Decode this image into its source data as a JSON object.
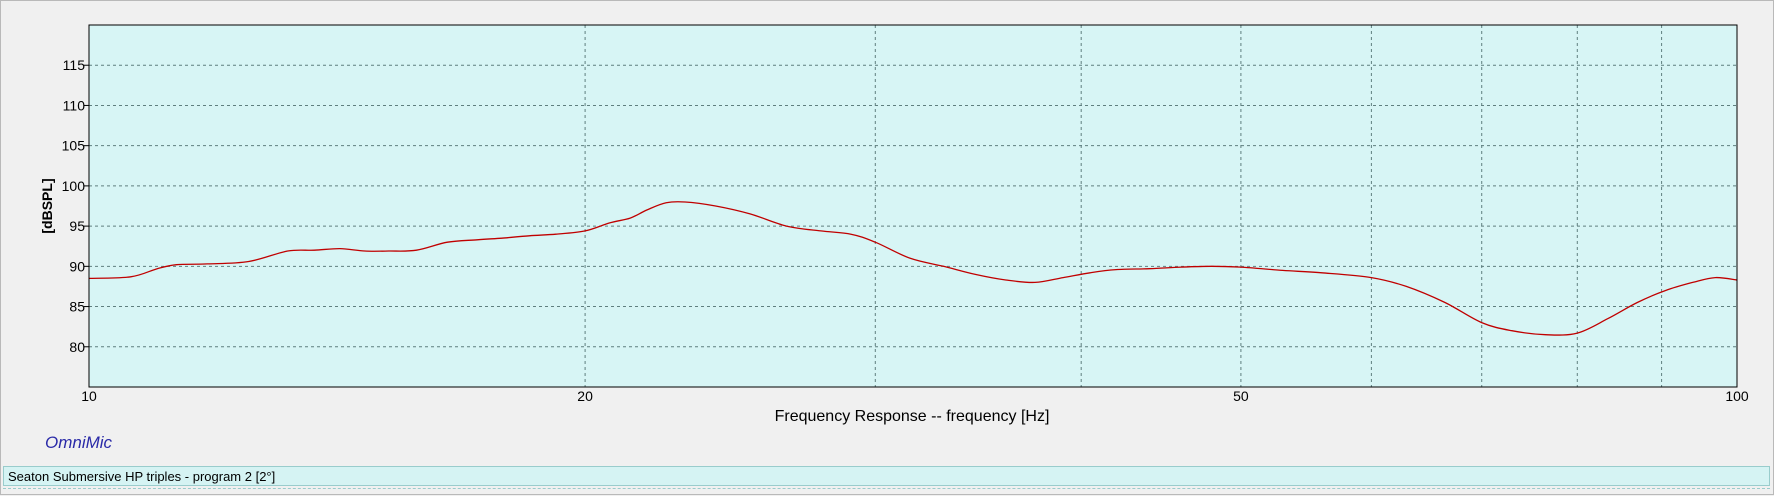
{
  "brand": "OmniMic",
  "status": {
    "text": "Seaton Submersive HP triples - program 2 [2°]"
  },
  "colors": {
    "plot_background": "#d7f5f5",
    "grid": "#5f7f7f",
    "curve": "#c00000",
    "brand_text": "#2a2aa8"
  },
  "chart_data": {
    "type": "line",
    "xlabel": "Frequency Response -- frequency [Hz]",
    "ylabel": "[dBSPL]",
    "x_scale": "log",
    "xlim": [
      10,
      100
    ],
    "ylim": [
      75,
      120
    ],
    "x_tick_labels": [
      {
        "value": 10,
        "label": "10"
      },
      {
        "value": 20,
        "label": "20"
      },
      {
        "value": 50,
        "label": "50"
      },
      {
        "value": 100,
        "label": "100"
      }
    ],
    "x_grid_values": [
      20,
      30,
      40,
      50,
      60,
      70,
      80,
      90
    ],
    "y_ticks": [
      80,
      85,
      90,
      95,
      100,
      105,
      110,
      115
    ],
    "grid": true,
    "series": [
      {
        "x": [
          10,
          10.6,
          11,
          11.3,
          11.8,
          12.5,
          13.2,
          13.7,
          14.2,
          14.7,
          15.2,
          15.8,
          16.5,
          17.2,
          17.8,
          18.5,
          19.2,
          20,
          20.7,
          21.3,
          21.8,
          22.4,
          23,
          24,
          25.2,
          26.5,
          27.8,
          29,
          30,
          31.5,
          33,
          34.5,
          36,
          37.5,
          39,
          40.5,
          42,
          44,
          46,
          48,
          50,
          53,
          56,
          60,
          63,
          66.5,
          70,
          73,
          76.5,
          80,
          83.5,
          87,
          90.5,
          94,
          97,
          100
        ],
        "y": [
          88.5,
          88.7,
          89.7,
          90.2,
          90.3,
          90.6,
          91.9,
          92.0,
          92.2,
          91.9,
          91.9,
          92.0,
          93.0,
          93.3,
          93.5,
          93.8,
          94.0,
          94.4,
          95.4,
          96.0,
          97.0,
          97.9,
          98.0,
          97.5,
          96.5,
          95.0,
          94.4,
          94.0,
          93.0,
          91.0,
          90.0,
          89.0,
          88.3,
          88.0,
          88.6,
          89.2,
          89.6,
          89.7,
          89.9,
          90.0,
          89.9,
          89.5,
          89.2,
          88.6,
          87.5,
          85.5,
          83.0,
          82.0,
          81.5,
          81.7,
          83.5,
          85.5,
          87.0,
          88.0,
          88.6,
          88.3
        ]
      }
    ]
  }
}
